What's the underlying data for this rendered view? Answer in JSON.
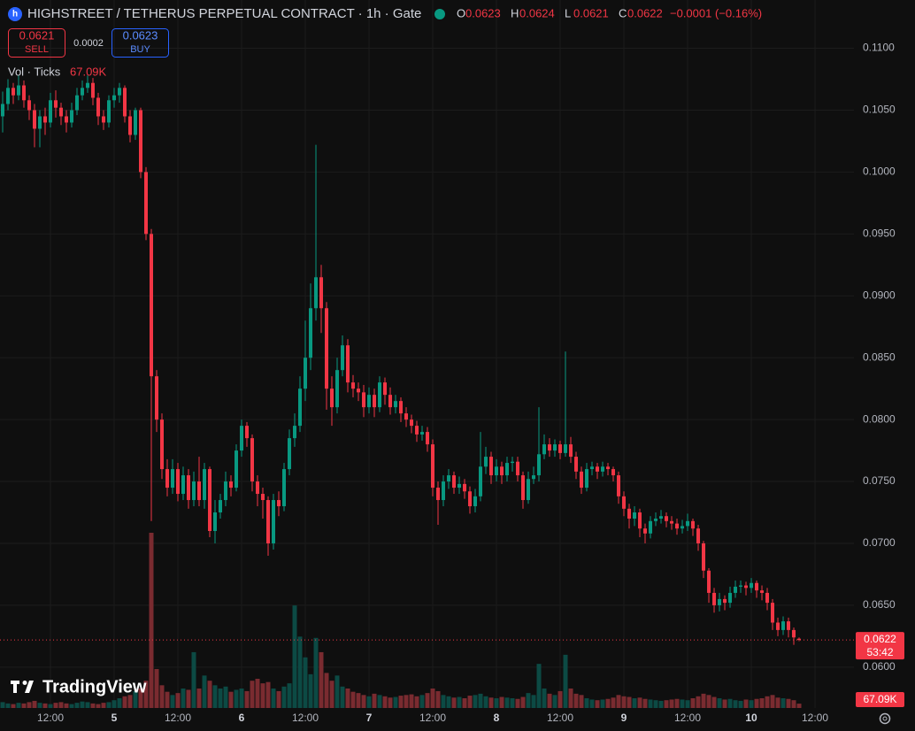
{
  "chart_data": {
    "type": "candlestick",
    "title": "HIGHSTREET / TETHERUS PERPETUAL CONTRACT · 1h · Gate",
    "legend_items": [
      {
        "key": "O",
        "value": "0.0623"
      },
      {
        "key": "H",
        "value": "0.0624"
      },
      {
        "key": "L",
        "value": "0.0621"
      },
      {
        "key": "C",
        "value": "0.0622"
      }
    ],
    "change": "−0.0001 (−0.16%)",
    "sell_price": "0.0621",
    "sell_label": "SELL",
    "spread": "0.0002",
    "buy_price": "0.0623",
    "buy_label": "BUY",
    "volume_title": "Vol · Ticks",
    "volume_label": "67.09K",
    "last_price_label": "0.0622",
    "countdown": "53:42",
    "brand": "TradingView",
    "up_color": "#089981",
    "down_color": "#f23645",
    "volume_up_color": "#0c4a44",
    "volume_down_color": "#7a2b30",
    "grid": true,
    "xlim": [
      -0.5,
      160.33
    ],
    "xticks": [
      {
        "value": 9,
        "label": "12:00"
      },
      {
        "value": 21,
        "label": "5"
      },
      {
        "value": 33,
        "label": "12:00"
      },
      {
        "value": 45,
        "label": "6"
      },
      {
        "value": 57,
        "label": "12:00"
      },
      {
        "value": 69,
        "label": "7"
      },
      {
        "value": 81,
        "label": "12:00"
      },
      {
        "value": 93,
        "label": "8"
      },
      {
        "value": 105,
        "label": "12:00"
      },
      {
        "value": 117,
        "label": "9"
      },
      {
        "value": 129,
        "label": "12:00"
      },
      {
        "value": 141,
        "label": "10"
      },
      {
        "value": 153,
        "label": "12:00"
      }
    ],
    "ylim": [
      0.0567,
      0.1139
    ],
    "yticks": [
      {
        "value": 0.11,
        "label": "0.1100"
      },
      {
        "value": 0.105,
        "label": "0.1050"
      },
      {
        "value": 0.1,
        "label": "0.1000"
      },
      {
        "value": 0.095,
        "label": "0.0950"
      },
      {
        "value": 0.09,
        "label": "0.0900"
      },
      {
        "value": 0.085,
        "label": "0.0850"
      },
      {
        "value": 0.08,
        "label": "0.0800"
      },
      {
        "value": 0.075,
        "label": "0.0750"
      },
      {
        "value": 0.07,
        "label": "0.0700"
      },
      {
        "value": 0.065,
        "label": "0.0650"
      },
      {
        "value": 0.06,
        "label": "0.0600"
      }
    ],
    "volume_ylim": [
      0,
      3000000
    ],
    "open": [
      0.1045,
      0.1055,
      0.1068,
      0.1062,
      0.107,
      0.1058,
      0.105,
      0.1035,
      0.1045,
      0.104,
      0.1058,
      0.1052,
      0.1045,
      0.104,
      0.105,
      0.1062,
      0.1068,
      0.1072,
      0.106,
      0.1045,
      0.104,
      0.1058,
      0.1062,
      0.1068,
      0.1045,
      0.103,
      0.105,
      0.1,
      0.095,
      0.0835,
      0.08,
      0.076,
      0.0745,
      0.076,
      0.074,
      0.0755,
      0.0735,
      0.075,
      0.0735,
      0.076,
      0.071,
      0.0725,
      0.0735,
      0.075,
      0.0745,
      0.0775,
      0.0795,
      0.0785,
      0.075,
      0.074,
      0.0735,
      0.07,
      0.0735,
      0.073,
      0.076,
      0.0785,
      0.0795,
      0.0825,
      0.085,
      0.089,
      0.0915,
      0.089,
      0.0825,
      0.081,
      0.084,
      0.086,
      0.083,
      0.0825,
      0.0822,
      0.081,
      0.082,
      0.081,
      0.083,
      0.082,
      0.081,
      0.0815,
      0.0805,
      0.08,
      0.0795,
      0.0788,
      0.079,
      0.078,
      0.0745,
      0.0735,
      0.075,
      0.0755,
      0.0745,
      0.0748,
      0.0742,
      0.073,
      0.0738,
      0.0762,
      0.077,
      0.0755,
      0.0762,
      0.0755,
      0.0765,
      0.0766,
      0.0755,
      0.0735,
      0.0752,
      0.0755,
      0.0772,
      0.078,
      0.0775,
      0.078,
      0.0773,
      0.078,
      0.077,
      0.0758,
      0.0745,
      0.076,
      0.0762,
      0.0758,
      0.0762,
      0.076,
      0.0755,
      0.0738,
      0.0728,
      0.072,
      0.0725,
      0.0712,
      0.0708,
      0.0718,
      0.072,
      0.0722,
      0.0718,
      0.0716,
      0.0712,
      0.0714,
      0.0718,
      0.0712,
      0.07,
      0.0678,
      0.066,
      0.065,
      0.0655,
      0.0652,
      0.066,
      0.0665,
      0.0666,
      0.0664,
      0.0668,
      0.0662,
      0.066,
      0.0652,
      0.0636,
      0.063,
      0.0637,
      0.063,
      0.0623
    ],
    "high": [
      0.1065,
      0.1075,
      0.1072,
      0.1078,
      0.1074,
      0.1062,
      0.1055,
      0.105,
      0.1052,
      0.1064,
      0.1066,
      0.1056,
      0.105,
      0.1056,
      0.1068,
      0.1074,
      0.1078,
      0.1076,
      0.1064,
      0.105,
      0.1062,
      0.1068,
      0.1072,
      0.107,
      0.105,
      0.1052,
      0.1052,
      0.1004,
      0.0954,
      0.084,
      0.0805,
      0.0768,
      0.0768,
      0.0765,
      0.0762,
      0.076,
      0.0758,
      0.077,
      0.0765,
      0.0762,
      0.0735,
      0.074,
      0.0758,
      0.0755,
      0.078,
      0.08,
      0.0798,
      0.0788,
      0.0755,
      0.0745,
      0.0738,
      0.074,
      0.0742,
      0.0765,
      0.0792,
      0.0805,
      0.0835,
      0.088,
      0.091,
      0.1022,
      0.0925,
      0.0895,
      0.0835,
      0.085,
      0.0868,
      0.0865,
      0.0836,
      0.083,
      0.0828,
      0.0826,
      0.0825,
      0.0835,
      0.0834,
      0.0826,
      0.082,
      0.0818,
      0.081,
      0.0804,
      0.0799,
      0.0795,
      0.0794,
      0.0784,
      0.075,
      0.0755,
      0.076,
      0.0758,
      0.0754,
      0.0752,
      0.0746,
      0.0744,
      0.079,
      0.0778,
      0.0774,
      0.0768,
      0.0766,
      0.077,
      0.077,
      0.077,
      0.0758,
      0.0758,
      0.0762,
      0.081,
      0.0788,
      0.0785,
      0.0784,
      0.0783,
      0.0855,
      0.0786,
      0.0774,
      0.0762,
      0.0765,
      0.0766,
      0.0765,
      0.0766,
      0.0765,
      0.0762,
      0.0758,
      0.0742,
      0.0732,
      0.073,
      0.0728,
      0.0716,
      0.0722,
      0.0725,
      0.0727,
      0.0725,
      0.0722,
      0.072,
      0.0719,
      0.0724,
      0.072,
      0.0715,
      0.0702,
      0.068,
      0.0664,
      0.066,
      0.0658,
      0.0665,
      0.067,
      0.067,
      0.0669,
      0.0672,
      0.067,
      0.0666,
      0.0664,
      0.0655,
      0.064,
      0.0641,
      0.064,
      0.0632,
      0.0624
    ],
    "low": [
      0.1032,
      0.105,
      0.1055,
      0.1058,
      0.1052,
      0.1042,
      0.102,
      0.102,
      0.103,
      0.1036,
      0.1044,
      0.1038,
      0.1032,
      0.1036,
      0.1046,
      0.1058,
      0.1064,
      0.1054,
      0.1038,
      0.1034,
      0.1036,
      0.1052,
      0.1056,
      0.104,
      0.1024,
      0.1026,
      0.0995,
      0.0945,
      0.0718,
      0.079,
      0.0752,
      0.0738,
      0.074,
      0.0734,
      0.0735,
      0.0728,
      0.073,
      0.073,
      0.0728,
      0.0705,
      0.07,
      0.072,
      0.073,
      0.0738,
      0.0742,
      0.077,
      0.0778,
      0.0742,
      0.073,
      0.072,
      0.069,
      0.0695,
      0.0722,
      0.0726,
      0.0755,
      0.0778,
      0.079,
      0.0815,
      0.084,
      0.088,
      0.087,
      0.0808,
      0.0795,
      0.0805,
      0.0835,
      0.0822,
      0.0818,
      0.0815,
      0.0802,
      0.0805,
      0.0802,
      0.0806,
      0.0812,
      0.0804,
      0.0805,
      0.0798,
      0.0794,
      0.0789,
      0.0782,
      0.0783,
      0.0774,
      0.0738,
      0.0715,
      0.073,
      0.0744,
      0.074,
      0.074,
      0.0736,
      0.0724,
      0.0725,
      0.0734,
      0.0756,
      0.0748,
      0.075,
      0.0748,
      0.075,
      0.0758,
      0.075,
      0.0728,
      0.0732,
      0.0748,
      0.075,
      0.0768,
      0.077,
      0.077,
      0.0768,
      0.077,
      0.0765,
      0.0752,
      0.074,
      0.0742,
      0.0755,
      0.0752,
      0.0754,
      0.0755,
      0.075,
      0.0732,
      0.0722,
      0.0712,
      0.0714,
      0.0705,
      0.07,
      0.0704,
      0.0714,
      0.0716,
      0.0713,
      0.0711,
      0.0707,
      0.0708,
      0.071,
      0.0706,
      0.0694,
      0.0672,
      0.0652,
      0.0644,
      0.0645,
      0.0646,
      0.0648,
      0.0656,
      0.066,
      0.0658,
      0.066,
      0.0656,
      0.0654,
      0.0646,
      0.063,
      0.0625,
      0.0626,
      0.0624,
      0.0618,
      0.0621
    ],
    "close": [
      0.1055,
      0.1068,
      0.1062,
      0.107,
      0.1058,
      0.105,
      0.1035,
      0.1045,
      0.104,
      0.1058,
      0.1052,
      0.1045,
      0.104,
      0.105,
      0.1062,
      0.1068,
      0.1072,
      0.106,
      0.1045,
      0.104,
      0.1058,
      0.1062,
      0.1068,
      0.1045,
      0.103,
      0.105,
      0.1,
      0.095,
      0.0835,
      0.08,
      0.076,
      0.0745,
      0.076,
      0.074,
      0.0755,
      0.0735,
      0.075,
      0.0735,
      0.076,
      0.071,
      0.0725,
      0.0735,
      0.075,
      0.0745,
      0.0775,
      0.0795,
      0.0785,
      0.075,
      0.074,
      0.0735,
      0.07,
      0.0735,
      0.073,
      0.076,
      0.0785,
      0.0795,
      0.0825,
      0.085,
      0.089,
      0.0915,
      0.089,
      0.0825,
      0.081,
      0.084,
      0.086,
      0.083,
      0.0825,
      0.0822,
      0.081,
      0.082,
      0.081,
      0.083,
      0.082,
      0.081,
      0.0815,
      0.0805,
      0.08,
      0.0795,
      0.0788,
      0.079,
      0.078,
      0.0745,
      0.0735,
      0.075,
      0.0755,
      0.0745,
      0.0748,
      0.0742,
      0.073,
      0.0738,
      0.0762,
      0.077,
      0.0755,
      0.0762,
      0.0755,
      0.0765,
      0.0766,
      0.0755,
      0.0735,
      0.0752,
      0.0755,
      0.0772,
      0.078,
      0.0775,
      0.078,
      0.0773,
      0.078,
      0.077,
      0.0758,
      0.0745,
      0.076,
      0.0762,
      0.0758,
      0.0762,
      0.076,
      0.0755,
      0.0738,
      0.0728,
      0.072,
      0.0725,
      0.0712,
      0.0708,
      0.0718,
      0.072,
      0.0722,
      0.0718,
      0.0716,
      0.0712,
      0.0714,
      0.0718,
      0.0712,
      0.07,
      0.0678,
      0.066,
      0.065,
      0.0655,
      0.0652,
      0.066,
      0.0665,
      0.0666,
      0.0664,
      0.0668,
      0.0662,
      0.066,
      0.0652,
      0.0636,
      0.063,
      0.0637,
      0.063,
      0.0624,
      0.0622
    ],
    "volume": [
      90000,
      70000,
      60000,
      80000,
      70000,
      90000,
      110000,
      80000,
      70000,
      60000,
      80000,
      90000,
      70000,
      60000,
      80000,
      100000,
      90000,
      70000,
      60000,
      80000,
      90000,
      120000,
      150000,
      180000,
      200000,
      260000,
      300000,
      420000,
      2700000,
      600000,
      350000,
      250000,
      200000,
      230000,
      300000,
      280000,
      860000,
      300000,
      500000,
      420000,
      350000,
      300000,
      330000,
      250000,
      280000,
      300000,
      260000,
      420000,
      450000,
      380000,
      400000,
      300000,
      260000,
      330000,
      380000,
      1580000,
      1100000,
      780000,
      520000,
      1080000,
      860000,
      540000,
      420000,
      500000,
      330000,
      300000,
      250000,
      230000,
      200000,
      180000,
      220000,
      200000,
      180000,
      160000,
      170000,
      190000,
      200000,
      210000,
      180000,
      200000,
      230000,
      300000,
      260000,
      200000,
      180000,
      160000,
      170000,
      150000,
      190000,
      200000,
      220000,
      180000,
      160000,
      150000,
      170000,
      160000,
      150000,
      140000,
      170000,
      230000,
      200000,
      680000,
      300000,
      220000,
      200000,
      260000,
      820000,
      300000,
      220000,
      200000,
      150000,
      130000,
      120000,
      130000,
      140000,
      160000,
      200000,
      180000,
      170000,
      150000,
      160000,
      140000,
      130000,
      120000,
      110000,
      120000,
      130000,
      140000,
      130000,
      120000,
      150000,
      180000,
      220000,
      200000,
      170000,
      150000,
      130000,
      140000,
      120000,
      110000,
      130000,
      120000,
      140000,
      150000,
      180000,
      200000,
      160000,
      150000,
      140000,
      120000,
      67090
    ]
  }
}
